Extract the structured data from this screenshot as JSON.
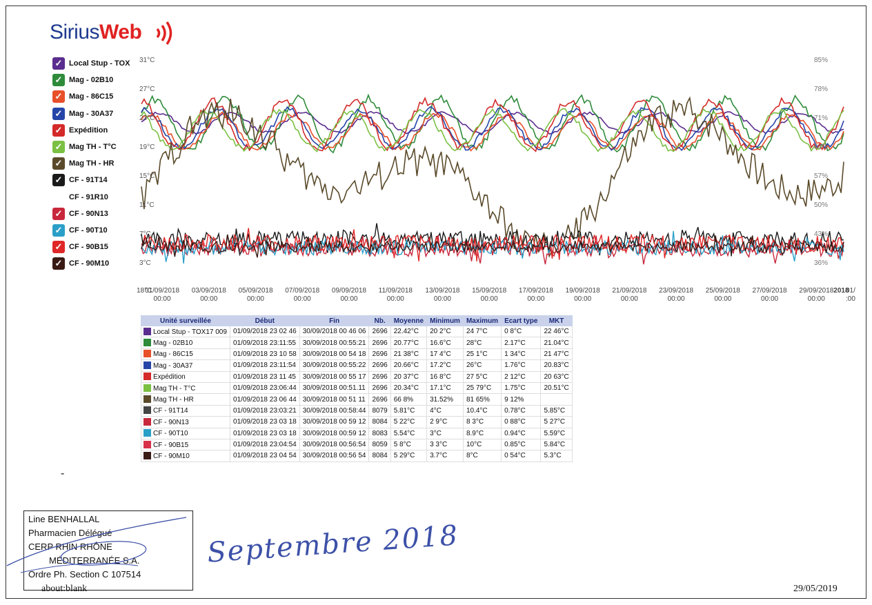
{
  "logo": {
    "part1": "Sirius",
    "part2": "Web"
  },
  "legend": [
    {
      "label": "Local Stup - TOX",
      "color": "#5b2d8e",
      "checked": true
    },
    {
      "label": "Mag - 02B10",
      "color": "#2e8b3a",
      "checked": true
    },
    {
      "label": "Mag - 86C15",
      "color": "#e8502a",
      "checked": true
    },
    {
      "label": "Mag - 30A37",
      "color": "#2645a8",
      "checked": true
    },
    {
      "label": "Expédition",
      "color": "#d42a2a",
      "checked": true
    },
    {
      "label": "Mag TH - T°C",
      "color": "#7bc043",
      "checked": true
    },
    {
      "label": "Mag TH - HR",
      "color": "#5a4a2a",
      "checked": true
    },
    {
      "label": "CF - 91T14",
      "color": "#1a1a1a",
      "checked": true
    },
    {
      "label": "CF - 91R10",
      "color": "#ffffff",
      "checked": false
    },
    {
      "label": "CF - 90N13",
      "color": "#c8283c",
      "checked": true
    },
    {
      "label": "CF - 90T10",
      "color": "#2a9fc8",
      "checked": true
    },
    {
      "label": "CF - 90B15",
      "color": "#e02828",
      "checked": true
    },
    {
      "label": "CF - 90M10",
      "color": "#3a1a14",
      "checked": true
    }
  ],
  "chart_data": {
    "type": "line",
    "left_axis_ticks": [
      "31°C",
      "27°C",
      "23°C",
      "19°C",
      "15°C",
      "11°C",
      "7°C",
      "3°C"
    ],
    "right_axis_ticks": [
      "85%",
      "78%",
      "71%",
      "64%",
      "57%",
      "50%",
      "43%",
      "36%"
    ],
    "x_ticks": [
      {
        "date": "01/09/2018",
        "time": "00:00"
      },
      {
        "date": "03/09/2018",
        "time": "00:00"
      },
      {
        "date": "05/09/2018",
        "time": "00:00"
      },
      {
        "date": "07/09/2018",
        "time": "00:00"
      },
      {
        "date": "09/09/2018",
        "time": "00:00"
      },
      {
        "date": "11/09/2018",
        "time": "00:00"
      },
      {
        "date": "13/09/2018",
        "time": "00:00"
      },
      {
        "date": "15/09/2018",
        "time": "00:00"
      },
      {
        "date": "17/09/2018",
        "time": "00:00"
      },
      {
        "date": "19/09/2018",
        "time": "00:00"
      },
      {
        "date": "21/09/2018",
        "time": "00:00"
      },
      {
        "date": "23/09/2018",
        "time": "00:00"
      },
      {
        "date": "25/09/2018",
        "time": "00:00"
      },
      {
        "date": "27/09/2018",
        "time": "00:00"
      },
      {
        "date": "29/09/2018",
        "time": "00:00"
      },
      {
        "date": "01/",
        "time": ":00"
      }
    ],
    "x_start_label": "18°C",
    "x_end_overlay": "2018",
    "ylim_temp": [
      3,
      31
    ],
    "ylim_hr": [
      36,
      85
    ],
    "series_ranges": [
      {
        "name": "Local Stup - TOX17 009",
        "min": 20.2,
        "max": 24.7,
        "color": "#5b2d8e"
      },
      {
        "name": "Mag - 02B10",
        "min": 16.6,
        "max": 28,
        "color": "#2e8b3a"
      },
      {
        "name": "Mag - 86C15",
        "min": 17.4,
        "max": 25.1,
        "color": "#e8502a"
      },
      {
        "name": "Mag - 30A37",
        "min": 17.2,
        "max": 26,
        "color": "#2645a8"
      },
      {
        "name": "Expédition",
        "min": 16.8,
        "max": 27.5,
        "color": "#d42a2a"
      },
      {
        "name": "Mag TH - T°C",
        "min": 17.1,
        "max": 25.79,
        "color": "#7bc043"
      },
      {
        "name": "Mag TH - HR",
        "min": 31.52,
        "max": 81.65,
        "color": "#5a4a2a"
      },
      {
        "name": "CF - 91T14",
        "min": 4,
        "max": 10.4,
        "color": "#1a1a1a"
      },
      {
        "name": "CF - 90N13",
        "min": 2.9,
        "max": 8.3,
        "color": "#c8283c"
      },
      {
        "name": "CF - 90T10",
        "min": 3,
        "max": 8.9,
        "color": "#2a9fc8"
      },
      {
        "name": "CF - 90B15",
        "min": 3.3,
        "max": 10,
        "color": "#e02828"
      },
      {
        "name": "CF - 90M10",
        "min": 3.7,
        "max": 8,
        "color": "#3a1a14"
      }
    ]
  },
  "table": {
    "headers": [
      "Unité surveillée",
      "Début",
      "Fin",
      "Nb.",
      "Moyenne",
      "Minimum",
      "Maximum",
      "Ecart type",
      "MKT"
    ],
    "rows": [
      {
        "color": "#5b2d8e",
        "cells": [
          "Local Stup - TOX17 009",
          "01/09/2018 23 02 46",
          "30/09/2018 00 46 06",
          "2696",
          "22.42°C",
          "20 2°C",
          "24 7°C",
          "0 8°C",
          "22 46°C"
        ]
      },
      {
        "color": "#2e8b3a",
        "cells": [
          "Mag - 02B10",
          "01/09/2018 23:11:55",
          "30/09/2018 00:55:21",
          "2696",
          "20.77°C",
          "16.6°C",
          "28°C",
          "2.17°C",
          "21.04°C"
        ]
      },
      {
        "color": "#e8502a",
        "cells": [
          "Mag - 86C15",
          "01/09/2018 23 10 58",
          "30/09/2018 00 54 18",
          "2696",
          "21 38°C",
          "17 4°C",
          "25 1°C",
          "1 34°C",
          "21 47°C"
        ]
      },
      {
        "color": "#2645a8",
        "cells": [
          "Mag - 30A37",
          "01/09/2018 23:11:54",
          "30/09/2018 00:55:22",
          "2696",
          "20.66°C",
          "17.2°C",
          "26°C",
          "1.76°C",
          "20.83°C"
        ]
      },
      {
        "color": "#d42a2a",
        "cells": [
          "Expédition",
          "01/09/2018 23 11 45",
          "30/09/2018 00 55 17",
          "2696",
          "20 37°C",
          "16 8°C",
          "27 5°C",
          "2 12°C",
          "20 63°C"
        ]
      },
      {
        "color": "#7bc043",
        "cells": [
          "Mag TH - T°C",
          "01/09/2018 23:06:44",
          "30/09/2018 00:51.11",
          "2696",
          "20.34°C",
          "17.1°C",
          "25 79°C",
          "1.75°C",
          "20.51°C"
        ]
      },
      {
        "color": "#5a4a2a",
        "cells": [
          "Mag TH - HR",
          "01/09/2018 23 06 44",
          "30/09/2018 00 51 11",
          "2696",
          "66 8%",
          "31.52%",
          "81 65%",
          "9 12%",
          ""
        ]
      },
      {
        "color": "#444444",
        "cells": [
          "CF - 91T14",
          "01/09/2018 23:03:21",
          "30/09/2018 00:58:44",
          "8079",
          "5.81°C",
          "4°C",
          "10.4°C",
          "0.78°C",
          "5.85°C"
        ]
      },
      {
        "color": "#c8283c",
        "cells": [
          "CF - 90N13",
          "01/09/2018 23 03 18",
          "30/09/2018 00 59 12",
          "8084",
          "5 22°C",
          "2 9°C",
          "8 3°C",
          "0 88°C",
          "5 27°C"
        ]
      },
      {
        "color": "#2a9fc8",
        "cells": [
          "CF - 90T10",
          "01/09/2018 23 03 18",
          "30/09/2018 00:59 12",
          "8083",
          "5.54°C",
          "3°C",
          "8.9°C",
          "0.94°C",
          "5.59°C"
        ]
      },
      {
        "color": "#d83048",
        "cells": [
          "CF - 90B15",
          "01/09/2018 23:04:54",
          "30/09/2018 00:56:54",
          "8059",
          "5 8°C",
          "3 3°C",
          "10°C",
          "0.85°C",
          "5.84°C"
        ]
      },
      {
        "color": "#3a1a14",
        "cells": [
          "CF - 90M10",
          "01/09/2018 23 04 54",
          "30/09/2018 00:56 54",
          "8084",
          "5 29°C",
          "3.7°C",
          "8°C",
          "0 54°C",
          "5.3°C"
        ]
      }
    ]
  },
  "stamp": {
    "line1": "Line BENHALLAL",
    "line2": "Pharmacien Délégué",
    "line3": "CERP RHIN RHÔNE",
    "line4": "MÉDITERRANÉE S.A.",
    "line5": "Ordre Ph. Section C 107514"
  },
  "handwriting": "Septembre 2018",
  "footer": {
    "url": "about:blank",
    "date": "29/05/2019",
    "dash": "-"
  }
}
